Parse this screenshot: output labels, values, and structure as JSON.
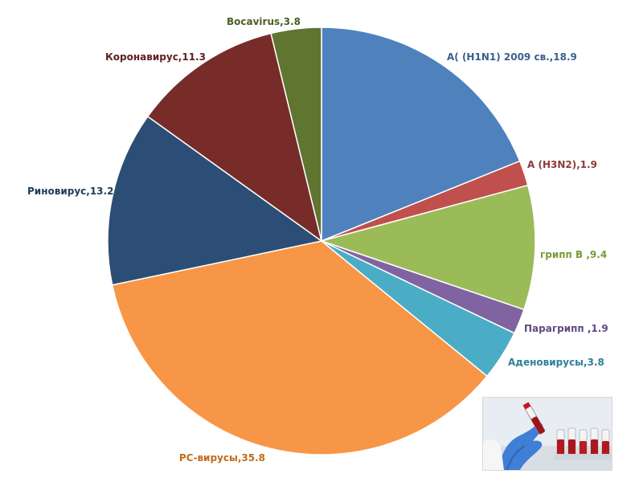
{
  "chart_data": {
    "type": "pie",
    "title": "",
    "slices": [
      {
        "label": "A( (H1N1) 2009 св.,18.9",
        "value": 18.9,
        "color": "#4f81bd",
        "label_color": "#3b5f8f"
      },
      {
        "label": "A (H3N2),1.9",
        "value": 1.9,
        "color": "#c0504d",
        "label_color": "#8c3a38"
      },
      {
        "label": "грипп B ,9.4",
        "value": 9.4,
        "color": "#9bbb59",
        "label_color": "#7a9a3a"
      },
      {
        "label": "Парагрипп ,1.9",
        "value": 1.9,
        "color": "#8064a2",
        "label_color": "#5f4a80"
      },
      {
        "label": "Аденовирусы,3.8",
        "value": 3.8,
        "color": "#4bacc6",
        "label_color": "#2e7f96"
      },
      {
        "label": "РС-вирусы,35.8",
        "value": 35.8,
        "color": "#f79646",
        "label_color": "#c46a1c"
      },
      {
        "label": "Риновирус,13.2",
        "value": 13.2,
        "color": "#2c4d75",
        "label_color": "#1f3a5a"
      },
      {
        "label": "Коронавирус,11.3",
        "value": 11.3,
        "color": "#772c2a",
        "label_color": "#5e2321"
      },
      {
        "label": "Bocavirus,3.8",
        "value": 3.8,
        "color": "#5f7530",
        "label_color": "#4c5e26"
      }
    ],
    "start_angle": "12 o'clock",
    "direction": "clockwise",
    "legend": "none"
  }
}
